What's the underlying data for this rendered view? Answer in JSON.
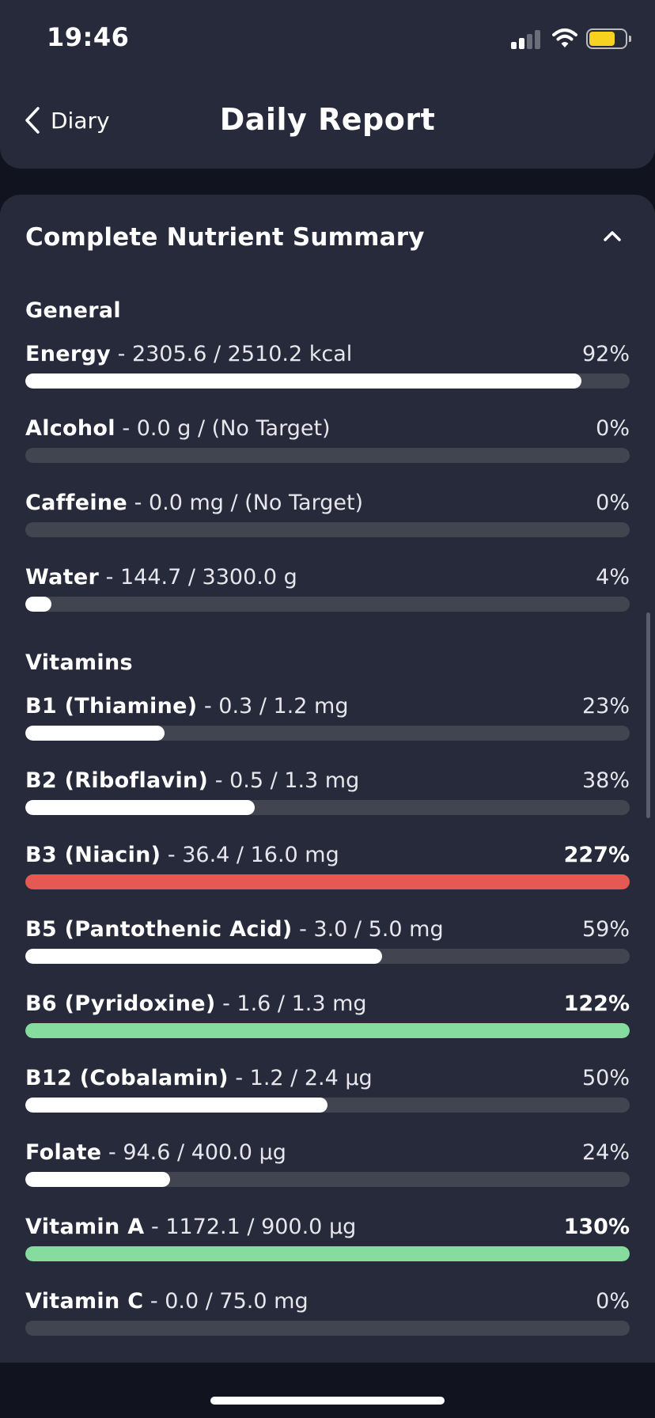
{
  "status_bar": {
    "time": "19:46",
    "icons": [
      "signal-icon",
      "wifi-icon",
      "battery-icon"
    ],
    "battery_level": 0.72
  },
  "header": {
    "back_label": "Diary",
    "title": "Daily Report"
  },
  "summary": {
    "title": "Complete Nutrient Summary",
    "collapse_icon": "chevron-up-icon"
  },
  "colors": {
    "normal": "#ffffff",
    "over_target": "#e45951",
    "target_met": "#86dc9e",
    "track": "#42444f",
    "background": "#11131f",
    "card": "#272a3a"
  },
  "sections": [
    {
      "title": "General",
      "items": [
        {
          "name": "Energy",
          "detail": " - 2305.6 / 2510.2 kcal",
          "percent_label": "92%",
          "progress": 0.92,
          "status": "normal"
        },
        {
          "name": "Alcohol",
          "detail": " - 0.0 g / (No Target)",
          "percent_label": "0%",
          "progress": 0,
          "status": "normal"
        },
        {
          "name": "Caffeine",
          "detail": " - 0.0 mg / (No Target)",
          "percent_label": "0%",
          "progress": 0,
          "status": "normal"
        },
        {
          "name": "Water",
          "detail": " - 144.7 / 3300.0 g",
          "percent_label": "4%",
          "progress": 0.04,
          "status": "normal"
        }
      ]
    },
    {
      "title": "Vitamins",
      "items": [
        {
          "name": "B1 (Thiamine)",
          "detail": " - 0.3 / 1.2 mg",
          "percent_label": "23%",
          "progress": 0.23,
          "status": "normal"
        },
        {
          "name": "B2 (Riboflavin)",
          "detail": " - 0.5 / 1.3 mg",
          "percent_label": "38%",
          "progress": 0.38,
          "status": "normal"
        },
        {
          "name": "B3 (Niacin)",
          "detail": " - 36.4 / 16.0 mg",
          "percent_label": "227%",
          "progress": 1,
          "status": "over_target"
        },
        {
          "name": "B5 (Pantothenic Acid)",
          "detail": " - 3.0 / 5.0 mg",
          "percent_label": "59%",
          "progress": 0.59,
          "status": "normal"
        },
        {
          "name": "B6 (Pyridoxine)",
          "detail": " - 1.6 / 1.3 mg",
          "percent_label": "122%",
          "progress": 1,
          "status": "target_met"
        },
        {
          "name": "B12 (Cobalamin)",
          "detail": " - 1.2 / 2.4 µg",
          "percent_label": "50%",
          "progress": 0.5,
          "status": "normal"
        },
        {
          "name": "Folate",
          "detail": " - 94.6 / 400.0 µg",
          "percent_label": "24%",
          "progress": 0.24,
          "status": "normal"
        },
        {
          "name": "Vitamin A",
          "detail": " - 1172.1 / 900.0 µg",
          "percent_label": "130%",
          "progress": 1,
          "status": "target_met"
        },
        {
          "name": "Vitamin C",
          "detail": " - 0.0 / 75.0 mg",
          "percent_label": "0%",
          "progress": 0,
          "status": "normal"
        }
      ]
    }
  ]
}
